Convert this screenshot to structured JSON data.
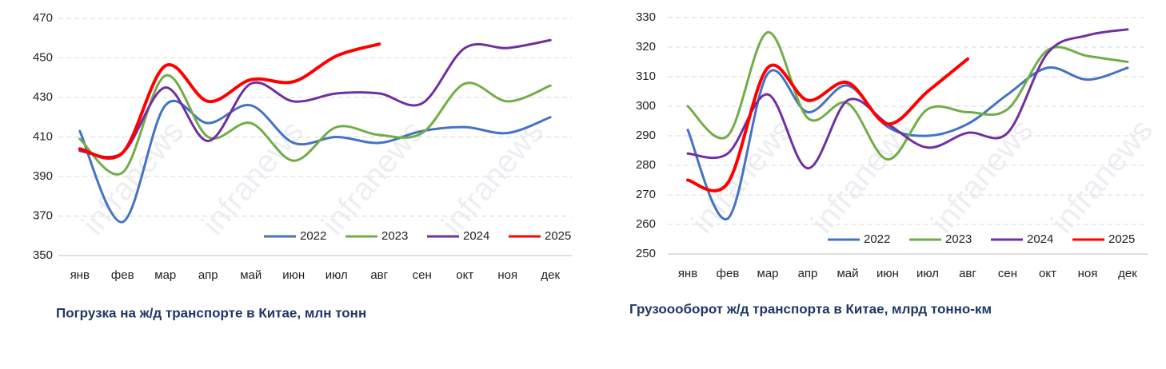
{
  "chart_data": [
    {
      "type": "line",
      "title": "Погрузка на ж/д транспорте в Китае, млн тонн",
      "watermark": "infranews",
      "categories": [
        "янв",
        "фев",
        "мар",
        "апр",
        "май",
        "июн",
        "июл",
        "авг",
        "сен",
        "окт",
        "ноя",
        "дек"
      ],
      "ylim": [
        350,
        470
      ],
      "yticks": [
        350,
        370,
        390,
        410,
        430,
        450,
        470
      ],
      "grid": true,
      "series": [
        {
          "name": "2022",
          "color": "#4472c4",
          "values": [
            413,
            367,
            426,
            417,
            426,
            407,
            410,
            407,
            413,
            415,
            412,
            420
          ]
        },
        {
          "name": "2023",
          "color": "#70ad47",
          "values": [
            409,
            392,
            441,
            410,
            417,
            398,
            415,
            411,
            412,
            437,
            428,
            436
          ]
        },
        {
          "name": "2024",
          "color": "#7030a0",
          "values": [
            403,
            402,
            435,
            408,
            437,
            428,
            432,
            432,
            427,
            455,
            455,
            459
          ]
        },
        {
          "name": "2025",
          "color": "#ff0000",
          "values": [
            404,
            402,
            446,
            428,
            439,
            438,
            451,
            457,
            null,
            null,
            null,
            null
          ]
        }
      ]
    },
    {
      "type": "line",
      "title": "Грузоооборот ж/д транспорта в Китае, млрд тонно-км",
      "watermark": "infranews",
      "categories": [
        "янв",
        "фев",
        "мар",
        "апр",
        "май",
        "июн",
        "июл",
        "авг",
        "сен",
        "окт",
        "ноя",
        "дек"
      ],
      "ylim": [
        250,
        330
      ],
      "yticks": [
        250,
        260,
        270,
        280,
        290,
        300,
        310,
        320,
        330
      ],
      "grid": true,
      "series": [
        {
          "name": "2022",
          "color": "#4472c4",
          "values": [
            292,
            262,
            311,
            298,
            307,
            293,
            290,
            294,
            304,
            313,
            309,
            313
          ]
        },
        {
          "name": "2023",
          "color": "#70ad47",
          "values": [
            300,
            290,
            325,
            296,
            301,
            282,
            299,
            298,
            299,
            319,
            317,
            315
          ]
        },
        {
          "name": "2024",
          "color": "#7030a0",
          "values": [
            284,
            284,
            304,
            279,
            302,
            294,
            286,
            291,
            291,
            318,
            324,
            326
          ]
        },
        {
          "name": "2025",
          "color": "#ff0000",
          "values": [
            275,
            274,
            313,
            302,
            308,
            294,
            305,
            316,
            null,
            null,
            null,
            null
          ]
        }
      ]
    }
  ]
}
